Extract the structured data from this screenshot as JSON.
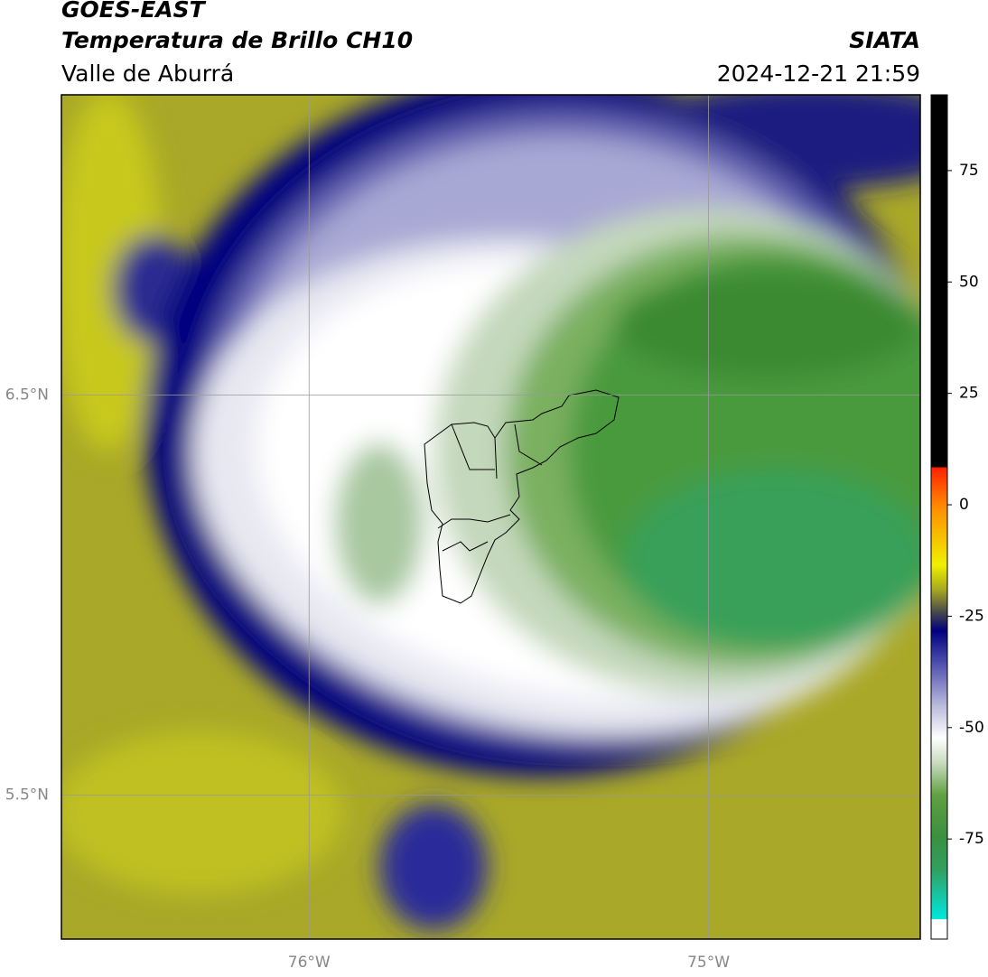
{
  "header": {
    "title": "GOES-EAST",
    "subtitle": "Temperatura de Brillo CH10",
    "region": "Valle de Aburrá",
    "source": "SIATA",
    "timestamp": "2024-12-21 21:59"
  },
  "map": {
    "type": "map",
    "xlim": [
      -76.62,
      -74.47
    ],
    "ylim": [
      5.14,
      7.25
    ],
    "xticks": [
      {
        "value": -76,
        "label": "76°W"
      },
      {
        "value": -75,
        "label": "75°W"
      }
    ],
    "yticks": [
      {
        "value": 6.5,
        "label": "6.5°N"
      },
      {
        "value": 5.5,
        "label": "5.5°N"
      }
    ],
    "grid": true
  },
  "colorbar": {
    "lim": [
      -93,
      92
    ],
    "ticks": [
      75,
      50,
      25,
      0,
      -25,
      -50,
      -75
    ]
  }
}
